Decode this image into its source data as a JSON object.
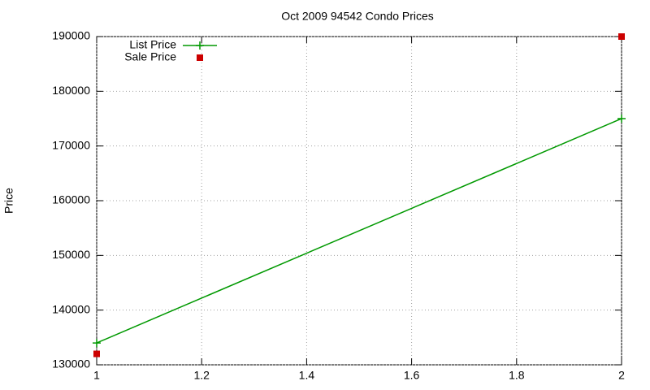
{
  "chart_data": {
    "type": "line",
    "title": "Oct 2009 94542 Condo Prices",
    "y_label": "Price",
    "x": [
      1,
      2
    ],
    "series": [
      {
        "name": "List Price",
        "color": "#009900",
        "style": "linespoints",
        "values": [
          134000,
          175000
        ]
      },
      {
        "name": "Sale Price",
        "color": "#cc0000",
        "style": "points",
        "values": [
          132000,
          190000
        ]
      }
    ],
    "xlim": [
      1,
      2
    ],
    "xticks": [
      1,
      1.2,
      1.4,
      1.6,
      1.8,
      2
    ],
    "ylim": [
      130000,
      190000
    ],
    "yticks": [
      130000,
      140000,
      150000,
      160000,
      170000,
      180000,
      190000
    ],
    "grid": true,
    "legend": "top-left"
  }
}
